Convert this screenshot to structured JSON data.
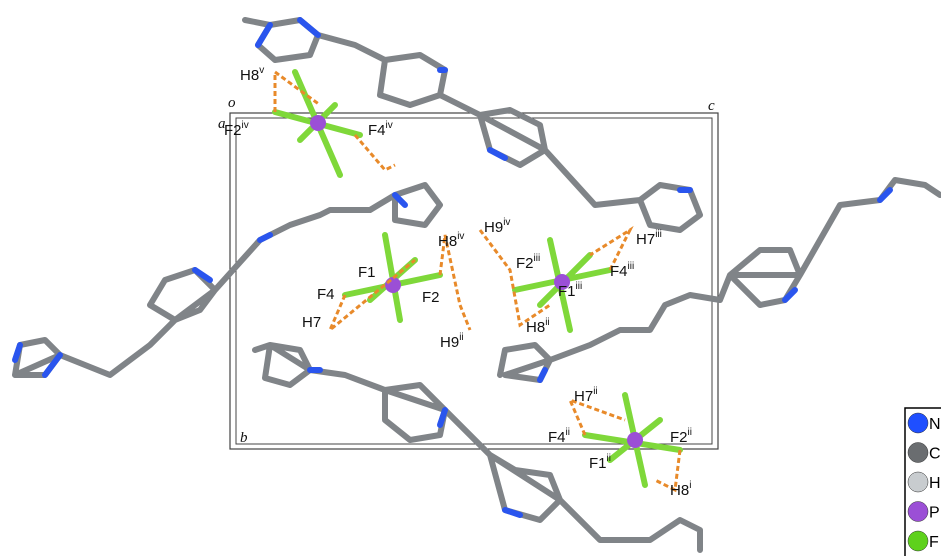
{
  "cell_labels": {
    "origin": "o",
    "a": "a",
    "b": "b",
    "c": "c"
  },
  "atom_labels": [
    {
      "atom": "H8",
      "sym": "v"
    },
    {
      "atom": "F2",
      "sym": "iv"
    },
    {
      "atom": "F4",
      "sym": "iv"
    },
    {
      "atom": "H9",
      "sym": "iv"
    },
    {
      "atom": "H8",
      "sym": "iv"
    },
    {
      "atom": "F1"
    },
    {
      "atom": "F4"
    },
    {
      "atom": "F2"
    },
    {
      "atom": "H7"
    },
    {
      "atom": "F2",
      "sym": "iii"
    },
    {
      "atom": "F4",
      "sym": "iii"
    },
    {
      "atom": "H7",
      "sym": "iii"
    },
    {
      "atom": "F1",
      "sym": "iii"
    },
    {
      "atom": "H8",
      "sym": "ii"
    },
    {
      "atom": "H9",
      "sym": "ii"
    },
    {
      "atom": "H7",
      "sym": "ii"
    },
    {
      "atom": "F4",
      "sym": "ii"
    },
    {
      "atom": "F2",
      "sym": "ii"
    },
    {
      "atom": "F1",
      "sym": "ii"
    },
    {
      "atom": "H8",
      "sym": "i"
    }
  ],
  "legend": [
    {
      "label": "N",
      "color": "#1f4fff"
    },
    {
      "label": "C",
      "color": "#6a6d70"
    },
    {
      "label": "H",
      "color": "#c8cccf"
    },
    {
      "label": "P",
      "color": "#9b4fd6"
    },
    {
      "label": "F",
      "color": "#5ed11c"
    }
  ]
}
